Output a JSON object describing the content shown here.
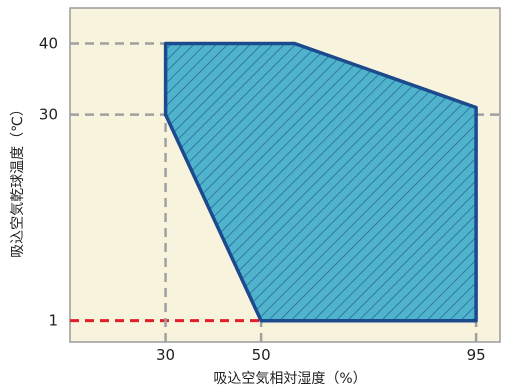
{
  "chart_data": {
    "type": "area",
    "title": "",
    "xlabel": "吸込空気相対湿度（%）",
    "ylabel": "吸込空気乾球温度（℃）",
    "xlim": [
      10,
      100
    ],
    "ylim": [
      -2,
      45
    ],
    "x_ticks": [
      30,
      50,
      95
    ],
    "y_ticks": [
      1,
      30,
      40
    ],
    "grid": false,
    "region": {
      "name": "",
      "fill": "#4fb3cc",
      "hatch": "#1f4f8a",
      "edge": "#1c4a8e",
      "points": [
        {
          "x": 30,
          "y": 40
        },
        {
          "x": 57,
          "y": 40
        },
        {
          "x": 95,
          "y": 31
        },
        {
          "x": 95,
          "y": 1
        },
        {
          "x": 50,
          "y": 1
        },
        {
          "x": 30,
          "y": 30
        }
      ]
    },
    "reference_lines": [
      {
        "orientation": "horizontal",
        "y": 40,
        "from_x": 10,
        "to_x": 30,
        "color": "#a0a0a0"
      },
      {
        "orientation": "horizontal",
        "y": 30,
        "from_x": 10,
        "to_x": 100,
        "color": "#a0a0a0"
      },
      {
        "orientation": "horizontal",
        "y": 1,
        "from_x": 10,
        "to_x": 50,
        "color": "#e0202a"
      },
      {
        "orientation": "vertical",
        "x": 30,
        "from_y": -2,
        "to_y": 30,
        "color": "#a0a0a0"
      },
      {
        "orientation": "vertical",
        "x": 50,
        "from_y": -2,
        "to_y": 1,
        "color": "#a0a0a0"
      },
      {
        "orientation": "vertical",
        "x": 95,
        "from_y": -2,
        "to_y": 1,
        "color": "#a0a0a0"
      }
    ],
    "colors": {
      "plot_background": "#f8f3dc",
      "axis_line": "#9a9a9a"
    }
  }
}
